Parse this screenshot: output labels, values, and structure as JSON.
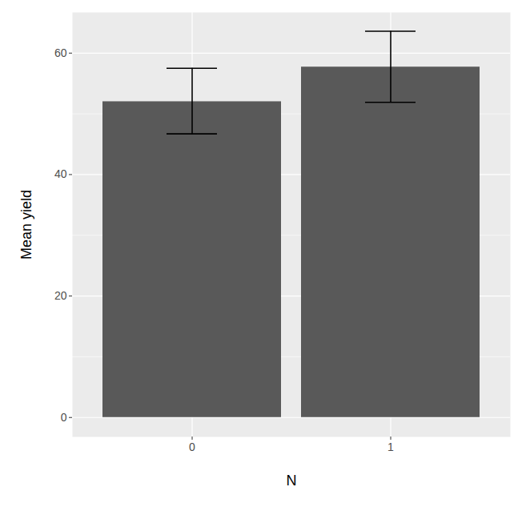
{
  "chart_data": {
    "type": "bar",
    "x_label": "N",
    "y_label": "Mean yield",
    "categories": [
      "0",
      "1"
    ],
    "values": [
      52.0,
      57.7
    ],
    "error_low": [
      46.7,
      51.9
    ],
    "error_high": [
      57.5,
      63.6
    ],
    "color": "#595959",
    "ylim": [
      -3.2,
      66.7
    ],
    "yticks": [
      0,
      20,
      40,
      60
    ],
    "grid": true
  }
}
